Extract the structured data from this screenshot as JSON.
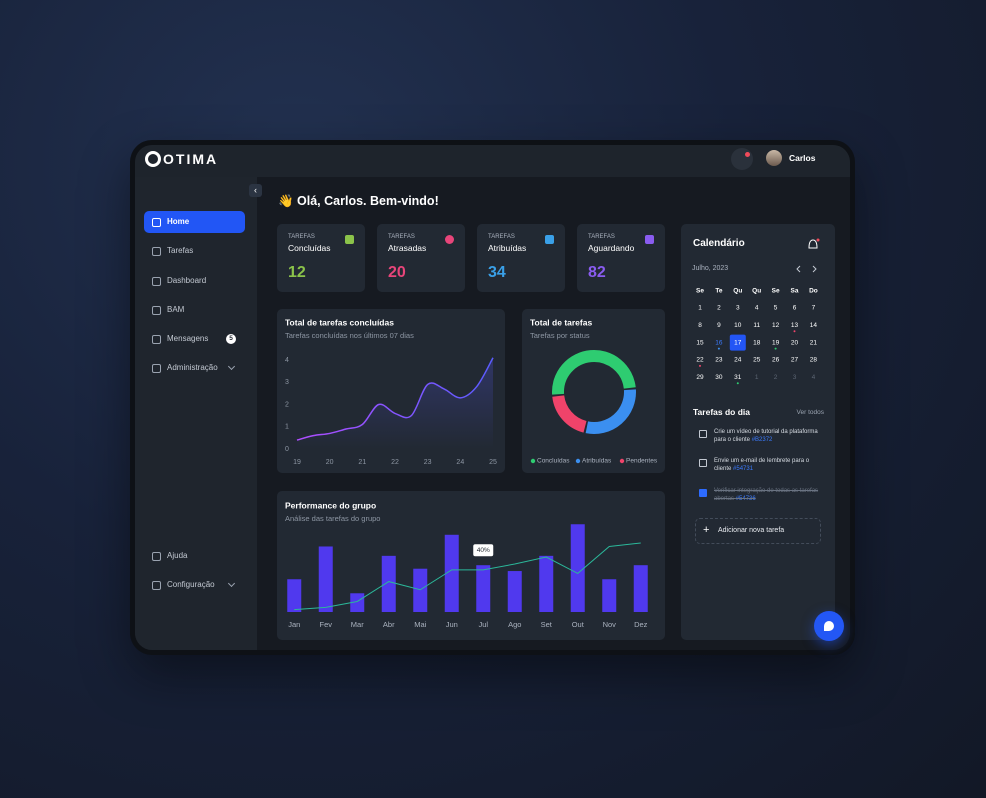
{
  "header": {
    "logo": "OTIMA",
    "user": "Carlos"
  },
  "sidebar": {
    "items": [
      {
        "label": "Home"
      },
      {
        "label": "Tarefas"
      },
      {
        "label": "Dashboard"
      },
      {
        "label": "BAM"
      },
      {
        "label": "Mensagens",
        "badge": 5
      },
      {
        "label": "Administração"
      },
      {
        "label": "Ajuda"
      },
      {
        "label": "Configuração"
      }
    ]
  },
  "greeting": "👋 Olá, Carlos. Bem-vindo!",
  "stats": [
    {
      "label": "TAREFAS",
      "name": "Concluídas",
      "value": 12,
      "color": "#8bc34a"
    },
    {
      "label": "TAREFAS",
      "name": "Atrasadas",
      "value": 20,
      "color": "#e8457a"
    },
    {
      "label": "TAREFAS",
      "name": "Atribuídas",
      "value": 34,
      "color": "#3aa0e8"
    },
    {
      "label": "TAREFAS",
      "name": "Aguardando",
      "value": 82,
      "color": "#8a5cf0"
    }
  ],
  "chart_data": [
    {
      "type": "line",
      "title": "Total de tarefas concluídas",
      "subtitle": "Tarefas concluídas nos últimos 07 dias",
      "x": [
        19,
        19.5,
        20,
        20.5,
        21,
        21.5,
        22,
        22.5,
        23,
        23.5,
        24,
        24.5,
        25
      ],
      "values": [
        0.4,
        0.6,
        0.7,
        0.9,
        1.1,
        2.0,
        1.6,
        1.5,
        2.9,
        2.7,
        2.3,
        2.8,
        4.1
      ],
      "color": "#5a5cff",
      "xlim": [
        19,
        25
      ],
      "xticks": [
        19,
        20,
        21,
        22,
        23,
        24,
        25
      ],
      "ylim": [
        0,
        4
      ],
      "yticks": [
        0,
        1,
        2,
        3,
        4
      ]
    },
    {
      "type": "pie",
      "title": "Total de tarefas",
      "subtitle": "Tarefas por status",
      "categories": [
        "Concluídas",
        "Atribuídas",
        "Pendentes"
      ],
      "values": [
        50,
        30,
        20
      ],
      "colors": [
        "#2ecc71",
        "#3b8ff0",
        "#f0436a"
      ]
    },
    {
      "type": "bar",
      "title": "Performance do grupo",
      "subtitle": "Análise das tarefas do grupo",
      "categories": [
        "Jan",
        "Fev",
        "Mar",
        "Abr",
        "Mai",
        "Jun",
        "Jul",
        "Ago",
        "Set",
        "Out",
        "Nov",
        "Dez"
      ],
      "ylim": [
        0,
        100
      ],
      "series": [
        {
          "type": "bar",
          "color": "#5039ee",
          "values": [
            28,
            56,
            16,
            48,
            37,
            66,
            40,
            35,
            48,
            75,
            28,
            40
          ],
          "value_labels": [
            null,
            null,
            null,
            null,
            null,
            null,
            "40%",
            null,
            null,
            null,
            null,
            null
          ]
        },
        {
          "type": "line",
          "color": "#2bb89a",
          "values": [
            2,
            4,
            9,
            26,
            19,
            36,
            36,
            41,
            47,
            33,
            56,
            59
          ]
        }
      ]
    }
  ],
  "calendar": {
    "title": "Calendário",
    "month": "Julho, 2023",
    "weekdays": [
      "Se",
      "Te",
      "Qu",
      "Qu",
      "Se",
      "Sa",
      "Do"
    ],
    "weeks": [
      [
        1,
        2,
        3,
        4,
        5,
        6,
        7
      ],
      [
        8,
        9,
        10,
        11,
        12,
        13,
        14
      ],
      [
        15,
        16,
        17,
        18,
        19,
        20,
        21
      ],
      [
        22,
        23,
        24,
        25,
        26,
        27,
        28
      ],
      [
        29,
        30,
        31,
        1,
        2,
        3,
        4
      ]
    ]
  },
  "tasks": {
    "title": "Tarefas do dia",
    "link": "Ver todos",
    "items": [
      {
        "text": "Crie um vídeo de tutorial da plataforma para o cliente",
        "tag": "#B2372",
        "done": false
      },
      {
        "text": "Envie um e-mail de lembrete para o cliente",
        "tag": "#54731",
        "done": false
      },
      {
        "text": "Verificar integração de todas as tarefas abertas",
        "tag": "#54736",
        "done": true
      }
    ],
    "add": "Adicionar nova tarefa"
  }
}
